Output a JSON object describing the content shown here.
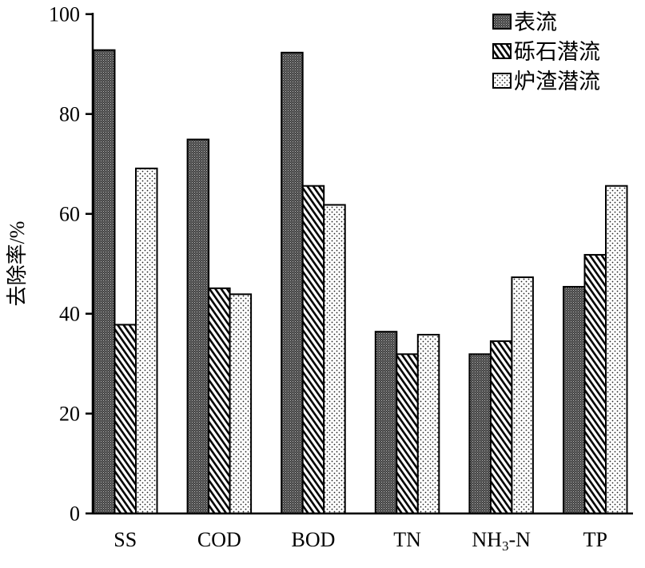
{
  "chart_data": {
    "type": "bar",
    "title": "",
    "xlabel": "",
    "ylabel": "去除率/%",
    "ylim": [
      0,
      100
    ],
    "yticks": [
      0,
      20,
      40,
      60,
      80,
      100
    ],
    "grid": false,
    "legend_position": "top-right",
    "categories": [
      "SS",
      "COD",
      "BOD",
      "TN",
      "NH3-N",
      "TP"
    ],
    "series": [
      {
        "name": "表流",
        "pattern": "dark-dense-dots",
        "values": [
          92.8,
          74.9,
          92.3,
          36.4,
          31.9,
          45.4
        ]
      },
      {
        "name": "砾石潜流",
        "pattern": "diagonal-hatch",
        "values": [
          37.8,
          45.1,
          65.6,
          31.9,
          34.5,
          51.8
        ]
      },
      {
        "name": "炉渣潜流",
        "pattern": "light-dots",
        "values": [
          69.1,
          43.9,
          61.8,
          35.8,
          47.3,
          65.6
        ]
      }
    ]
  }
}
